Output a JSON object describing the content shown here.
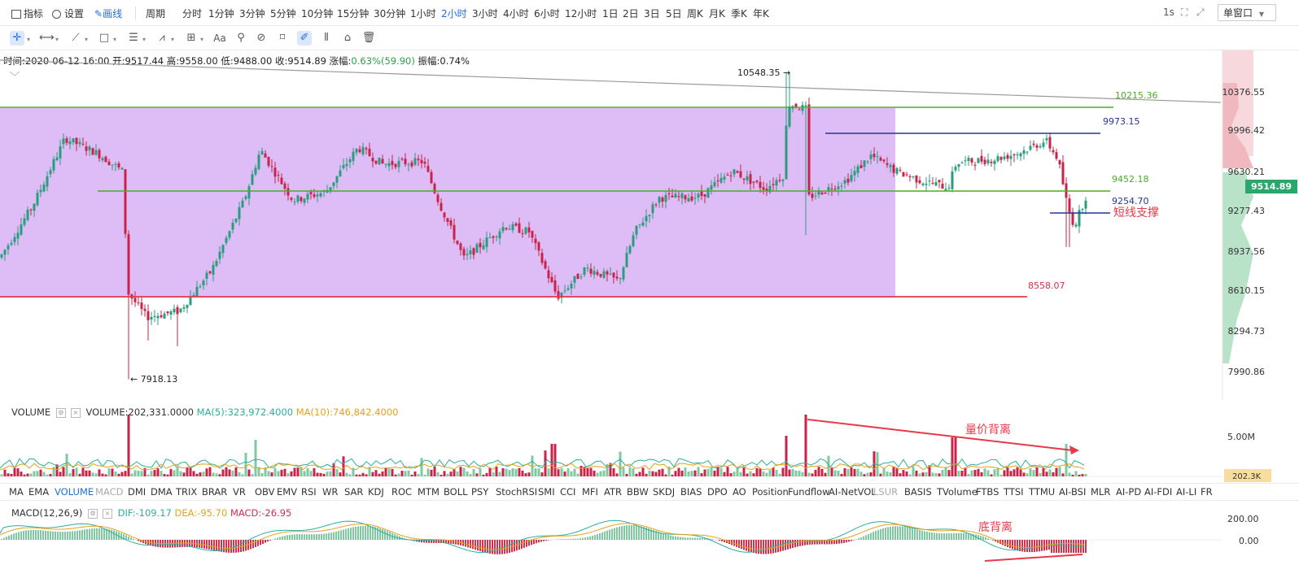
{
  "toolbar": {
    "indicator_label": "指标",
    "settings_label": "设置",
    "draw_label": "画线",
    "period_label": "周期",
    "periods": [
      "分时",
      "1分钟",
      "3分钟",
      "5分钟",
      "10分钟",
      "15分钟",
      "30分钟",
      "1小时",
      "2小时",
      "3小时",
      "4小时",
      "6小时",
      "12小时",
      "1日",
      "2日",
      "3日",
      "5日",
      "周K",
      "月K",
      "季K",
      "年K"
    ],
    "active_period": "2小时",
    "refresh_label": "1s",
    "window_select": "单窗口"
  },
  "drawing_tools": [
    "crosshair-icon",
    "horizontal-line-icon",
    "trend-line-icon",
    "rectangle-icon",
    "parallel-lines-icon",
    "wave-icon",
    "measure-icon",
    "text-icon",
    "fib-icon",
    "magnet-icon",
    "ruler-icon",
    "pen-icon",
    "pattern-icon",
    "lock-icon",
    "trash-icon"
  ],
  "ohlc": {
    "time_label": "时间:2020-06-12 16:00",
    "open_label": "开:9517.44",
    "high_label": "高:9558.00",
    "low_label": "低:9488.00",
    "close_label": "收:9514.89",
    "change_label": "涨幅:",
    "change_value": "0.63%(59.90)",
    "amplitude_label": "振幅:0.74%"
  },
  "price_axis": [
    "10376.55",
    "9996.42",
    "9630.21",
    "9277.43",
    "8937.56",
    "8610.15",
    "8294.73",
    "7990.86"
  ],
  "current_price": "9514.89",
  "annotations": {
    "high_marker": "10548.35 →",
    "low_marker": "← 7918.13",
    "level_10215": "10215.36",
    "level_9973": "9973.15",
    "level_9452": "9452.18",
    "level_9254": "9254.70",
    "level_8558": "8558.07",
    "short_support": "短线支撑",
    "volume_divergence": "量价背离",
    "bottom_divergence": "底背离"
  },
  "volume_panel": {
    "name": "VOLUME",
    "value": "VOLUME:202,331.0000",
    "ma5": "MA(5):323,972.4000",
    "ma10": "MA(10):746,842.4000",
    "axis_label": "5.00M",
    "tag": "202.3K"
  },
  "indicator_tabs": [
    "MA",
    "EMA",
    "VOLUME",
    "MACD",
    "DMI",
    "DMA",
    "TRIX",
    "BRAR",
    "VR",
    "OBV",
    "EMV",
    "RSI",
    "WR",
    "SAR",
    "KDJ",
    "ROC",
    "MTM",
    "BOLL",
    "PSY",
    "StochRSI",
    "SMI",
    "CCI",
    "MFI",
    "ATR",
    "BBW",
    "SKDJ",
    "BIAS",
    "DPO",
    "AO",
    "Position",
    "Fundflow",
    "AI-NetVOL",
    "LSUR",
    "BASIS",
    "TVolume",
    "FTBS",
    "TTSI",
    "TTMU",
    "AI-BSI",
    "MLR",
    "AI-PD",
    "AI-FDI",
    "AI-LI",
    "FR"
  ],
  "macd_panel": {
    "name": "MACD(12,26,9)",
    "dif": "DIF:-109.17",
    "dea": "DEA:-95.70",
    "macd": "MACD:-26.95",
    "axis_top": "200.00",
    "axis_zero": "0.00"
  },
  "colors": {
    "accent": "#1e6fe0",
    "up": "#2a9d7f",
    "down": "#c8234a",
    "zone": "#dcb8f5",
    "support_green": "#4caa2a",
    "resistance_red": "#e8394a",
    "blue_line": "#27359a"
  }
}
